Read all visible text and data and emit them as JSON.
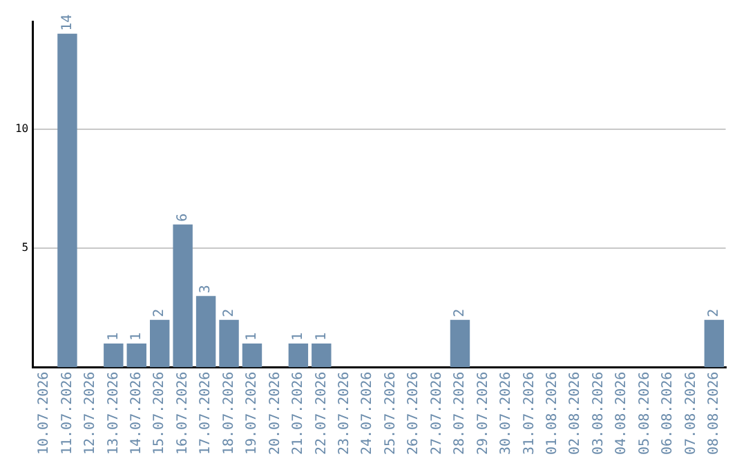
{
  "chart_data": {
    "type": "bar",
    "categories": [
      "10.07.2026",
      "11.07.2026",
      "12.07.2026",
      "13.07.2026",
      "14.07.2026",
      "15.07.2026",
      "16.07.2026",
      "17.07.2026",
      "18.07.2026",
      "19.07.2026",
      "20.07.2026",
      "21.07.2026",
      "22.07.2026",
      "23.07.2026",
      "24.07.2026",
      "25.07.2026",
      "26.07.2026",
      "27.07.2026",
      "28.07.2026",
      "29.07.2026",
      "30.07.2026",
      "31.07.2026",
      "01.08.2026",
      "02.08.2026",
      "03.08.2026",
      "04.08.2026",
      "05.08.2026",
      "06.08.2026",
      "07.08.2026",
      "08.08.2026"
    ],
    "values": [
      0,
      14,
      0,
      1,
      1,
      2,
      6,
      3,
      2,
      1,
      0,
      1,
      1,
      0,
      0,
      0,
      0,
      0,
      2,
      0,
      0,
      0,
      0,
      0,
      0,
      0,
      0,
      0,
      0,
      2
    ],
    "value_labels": [
      null,
      "14",
      null,
      "1",
      "1",
      "2",
      "6",
      "3",
      "2",
      "1",
      null,
      "1",
      "1",
      null,
      null,
      null,
      null,
      null,
      "2",
      null,
      null,
      null,
      null,
      null,
      null,
      null,
      null,
      null,
      null,
      "2"
    ],
    "color": "#6b8cac",
    "ylim": [
      0,
      14.5
    ],
    "yticks": [
      5,
      10
    ],
    "grid": "y",
    "legend": false
  }
}
